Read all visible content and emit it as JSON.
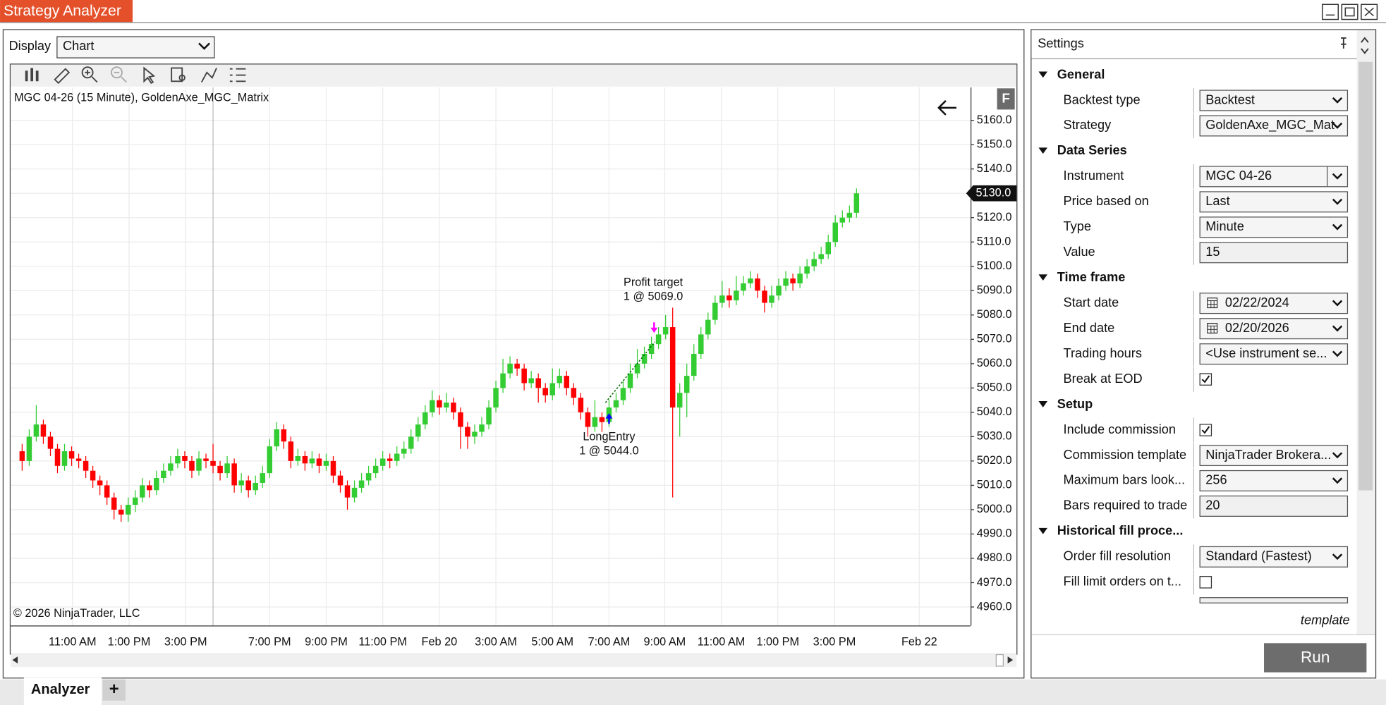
{
  "window_title": "Strategy Analyzer",
  "display_label": "Display",
  "display_value": "Chart",
  "chart_data": {
    "type": "candlestick",
    "title": "MGC 04-26 (15 Minute), GoldenAxe_MGC_Matrix",
    "copyright": "© 2026 NinjaTrader, LLC",
    "corner_badge": "F",
    "up_color": "#33cc33",
    "down_color": "#ff0000",
    "grid": true,
    "x_labels": [
      "11:00 AM",
      "1:00 PM",
      "3:00 PM",
      "7:00 PM",
      "9:00 PM",
      "11:00 PM",
      "Feb 20",
      "3:00 AM",
      "5:00 AM",
      "7:00 AM",
      "9:00 AM",
      "11:00 AM",
      "1:00 PM",
      "3:00 PM",
      "Feb 22"
    ],
    "open": [
      5024,
      5020,
      5030,
      5035,
      5030,
      5025,
      5018,
      5024,
      5021,
      5020,
      5016,
      5012,
      5010,
      5005,
      5000,
      4998,
      5002,
      5005,
      5010,
      5008,
      5013,
      5016,
      5019,
      5022,
      5020,
      5016,
      5021,
      5020,
      5018,
      5015,
      5019,
      5010,
      5012,
      5008,
      5011,
      5015,
      5026,
      5033,
      5028,
      5020,
      5022,
      5019,
      5021,
      5018,
      5020,
      5014,
      5010,
      5005,
      5009,
      5012,
      5015,
      5018,
      5021,
      5020,
      5023,
      5025,
      5030,
      5035,
      5040,
      5045,
      5042,
      5044,
      5040,
      5034,
      5030,
      5032,
      5035,
      5042,
      5050,
      5056,
      5060,
      5058,
      5052,
      5054,
      5050,
      5047,
      5052,
      5055,
      5050,
      5046,
      5040,
      5034,
      5038,
      5036,
      5042,
      5045,
      5050,
      5056,
      5060,
      5064,
      5068,
      5072,
      5075,
      5042,
      5048,
      5055,
      5064,
      5072,
      5078,
      5085,
      5088,
      5086,
      5090,
      5093,
      5095,
      5090,
      5085,
      5088,
      5092,
      5095,
      5093,
      5097,
      5100,
      5103,
      5105,
      5110,
      5118,
      5120,
      5122
    ],
    "high": [
      5027,
      5033,
      5043,
      5037,
      5032,
      5027,
      5027,
      5026,
      5023,
      5022,
      5018,
      5014,
      5012,
      5007,
      5002,
      5005,
      5008,
      5013,
      5012,
      5016,
      5019,
      5022,
      5025,
      5024,
      5022,
      5024,
      5023,
      5027,
      5020,
      5022,
      5021,
      5015,
      5014,
      5014,
      5018,
      5029,
      5036,
      5035,
      5030,
      5025,
      5024,
      5024,
      5023,
      5023,
      5022,
      5016,
      5012,
      5012,
      5015,
      5018,
      5021,
      5024,
      5023,
      5026,
      5028,
      5033,
      5038,
      5043,
      5049,
      5047,
      5048,
      5046,
      5042,
      5036,
      5035,
      5038,
      5045,
      5053,
      5062,
      5063,
      5062,
      5060,
      5057,
      5056,
      5052,
      5058,
      5058,
      5057,
      5052,
      5048,
      5042,
      5045,
      5040,
      5045,
      5048,
      5053,
      5060,
      5066,
      5067,
      5071,
      5075,
      5080,
      5083,
      5052,
      5060,
      5068,
      5075,
      5081,
      5088,
      5094,
      5091,
      5096,
      5096,
      5098,
      5097,
      5092,
      5092,
      5095,
      5098,
      5097,
      5100,
      5103,
      5106,
      5108,
      5113,
      5121,
      5123,
      5125,
      5132
    ],
    "low": [
      5016,
      5018,
      5028,
      5027,
      5022,
      5015,
      5016,
      5018,
      5017,
      5013,
      5009,
      5006,
      5002,
      4996,
      4995,
      4995,
      4999,
      5003,
      5005,
      5006,
      5011,
      5014,
      5017,
      5017,
      5013,
      5014,
      5017,
      5015,
      5012,
      5013,
      5007,
      5007,
      5005,
      5006,
      5009,
      5013,
      5024,
      5025,
      5017,
      5018,
      5016,
      5017,
      5015,
      5016,
      5011,
      5007,
      5000,
      5003,
      5007,
      5010,
      5013,
      5016,
      5017,
      5018,
      5021,
      5023,
      5028,
      5033,
      5038,
      5039,
      5040,
      5037,
      5025,
      5025,
      5027,
      5030,
      5033,
      5040,
      5048,
      5054,
      5055,
      5049,
      5050,
      5044,
      5044,
      5045,
      5050,
      5047,
      5043,
      5037,
      5030,
      5032,
      5032,
      5034,
      5040,
      5043,
      5048,
      5054,
      5058,
      5062,
      5066,
      5070,
      5005,
      5030,
      5038,
      5053,
      5062,
      5070,
      5076,
      5083,
      5083,
      5084,
      5088,
      5091,
      5087,
      5081,
      5083,
      5086,
      5090,
      5090,
      5091,
      5095,
      5098,
      5101,
      5103,
      5108,
      5116,
      5118,
      5120
    ],
    "close": [
      5020,
      5030,
      5035,
      5030,
      5025,
      5018,
      5024,
      5021,
      5020,
      5016,
      5012,
      5010,
      5005,
      5000,
      4998,
      5002,
      5005,
      5010,
      5008,
      5013,
      5016,
      5019,
      5022,
      5020,
      5016,
      5021,
      5020,
      5018,
      5015,
      5019,
      5010,
      5012,
      5008,
      5011,
      5015,
      5026,
      5033,
      5028,
      5020,
      5022,
      5019,
      5021,
      5018,
      5020,
      5014,
      5010,
      5005,
      5009,
      5012,
      5015,
      5018,
      5021,
      5020,
      5023,
      5025,
      5030,
      5035,
      5040,
      5045,
      5042,
      5044,
      5040,
      5034,
      5030,
      5032,
      5035,
      5042,
      5050,
      5056,
      5060,
      5058,
      5052,
      5054,
      5050,
      5047,
      5052,
      5055,
      5050,
      5046,
      5040,
      5034,
      5038,
      5036,
      5042,
      5045,
      5050,
      5056,
      5060,
      5064,
      5068,
      5072,
      5075,
      5042,
      5048,
      5055,
      5064,
      5072,
      5078,
      5085,
      5088,
      5086,
      5090,
      5093,
      5095,
      5090,
      5085,
      5088,
      5092,
      5095,
      5093,
      5097,
      5100,
      5103,
      5105,
      5110,
      5118,
      5120,
      5122,
      5130
    ],
    "ylim": [
      4952.4,
      5173.5
    ],
    "yticks": [
      {
        "value": 4960,
        "label": "4960.0"
      },
      {
        "value": 4970,
        "label": "4970.0"
      },
      {
        "value": 4980,
        "label": "4980.0"
      },
      {
        "value": 4990,
        "label": "4990.0"
      },
      {
        "value": 5000,
        "label": "5000.0"
      },
      {
        "value": 5010,
        "label": "5010.0"
      },
      {
        "value": 5020,
        "label": "5020.0"
      },
      {
        "value": 5030,
        "label": "5030.0"
      },
      {
        "value": 5040,
        "label": "5040.0"
      },
      {
        "value": 5050,
        "label": "5050.0"
      },
      {
        "value": 5060,
        "label": "5060.0"
      },
      {
        "value": 5070,
        "label": "5070.0"
      },
      {
        "value": 5080,
        "label": "5080.0"
      },
      {
        "value": 5090,
        "label": "5090.0"
      },
      {
        "value": 5100,
        "label": "5100.0"
      },
      {
        "value": 5110,
        "label": "5110.0"
      },
      {
        "value": 5120,
        "label": "5120.0"
      },
      {
        "value": 5130,
        "label": "5130.0"
      },
      {
        "value": 5140,
        "label": "5140.0"
      },
      {
        "value": 5150,
        "label": "5150.0"
      },
      {
        "value": 5160,
        "label": "5160.0"
      }
    ],
    "last_price": {
      "value": 5130,
      "label": "5130.0"
    },
    "trades": [
      {
        "name": "LongEntry",
        "label": "1 @ 5044.0",
        "price": 5044
      },
      {
        "name": "Profit target",
        "label": "1 @ 5069.0",
        "price": 5069
      }
    ]
  },
  "settings": {
    "title": "Settings",
    "sections": [
      {
        "name": "General",
        "rows": [
          {
            "label": "Backtest type",
            "kind": "select",
            "value": "Backtest"
          },
          {
            "label": "Strategy",
            "kind": "select",
            "value": "GoldenAxe_MGC_Mat"
          }
        ]
      },
      {
        "name": "Data Series",
        "rows": [
          {
            "label": "Instrument",
            "kind": "split",
            "value": "MGC 04-26"
          },
          {
            "label": "Price based on",
            "kind": "select",
            "value": "Last"
          },
          {
            "label": "Type",
            "kind": "select",
            "value": "Minute"
          },
          {
            "label": "Value",
            "kind": "text",
            "value": "15"
          }
        ]
      },
      {
        "name": "Time frame",
        "rows": [
          {
            "label": "Start date",
            "kind": "date",
            "value": "02/22/2024"
          },
          {
            "label": "End date",
            "kind": "date",
            "value": "02/20/2026"
          },
          {
            "label": "Trading hours",
            "kind": "select",
            "value": "<Use instrument se..."
          },
          {
            "label": "Break at EOD",
            "kind": "check",
            "value": true
          }
        ]
      },
      {
        "name": "Setup",
        "rows": [
          {
            "label": "Include commission",
            "kind": "check",
            "value": true
          },
          {
            "label": "Commission template",
            "kind": "select",
            "value": "NinjaTrader Brokera..."
          },
          {
            "label": "Maximum bars look...",
            "kind": "select",
            "value": "256"
          },
          {
            "label": "Bars required to trade",
            "kind": "text",
            "value": "20"
          }
        ]
      },
      {
        "name": "Historical fill proce...",
        "rows": [
          {
            "label": "Order fill resolution",
            "kind": "select",
            "value": "Standard (Fastest)"
          },
          {
            "label": "Fill limit orders on t...",
            "kind": "check",
            "value": false
          }
        ]
      }
    ],
    "footer": "template",
    "run": "Run"
  },
  "tabs": [
    "Analyzer",
    "+"
  ]
}
